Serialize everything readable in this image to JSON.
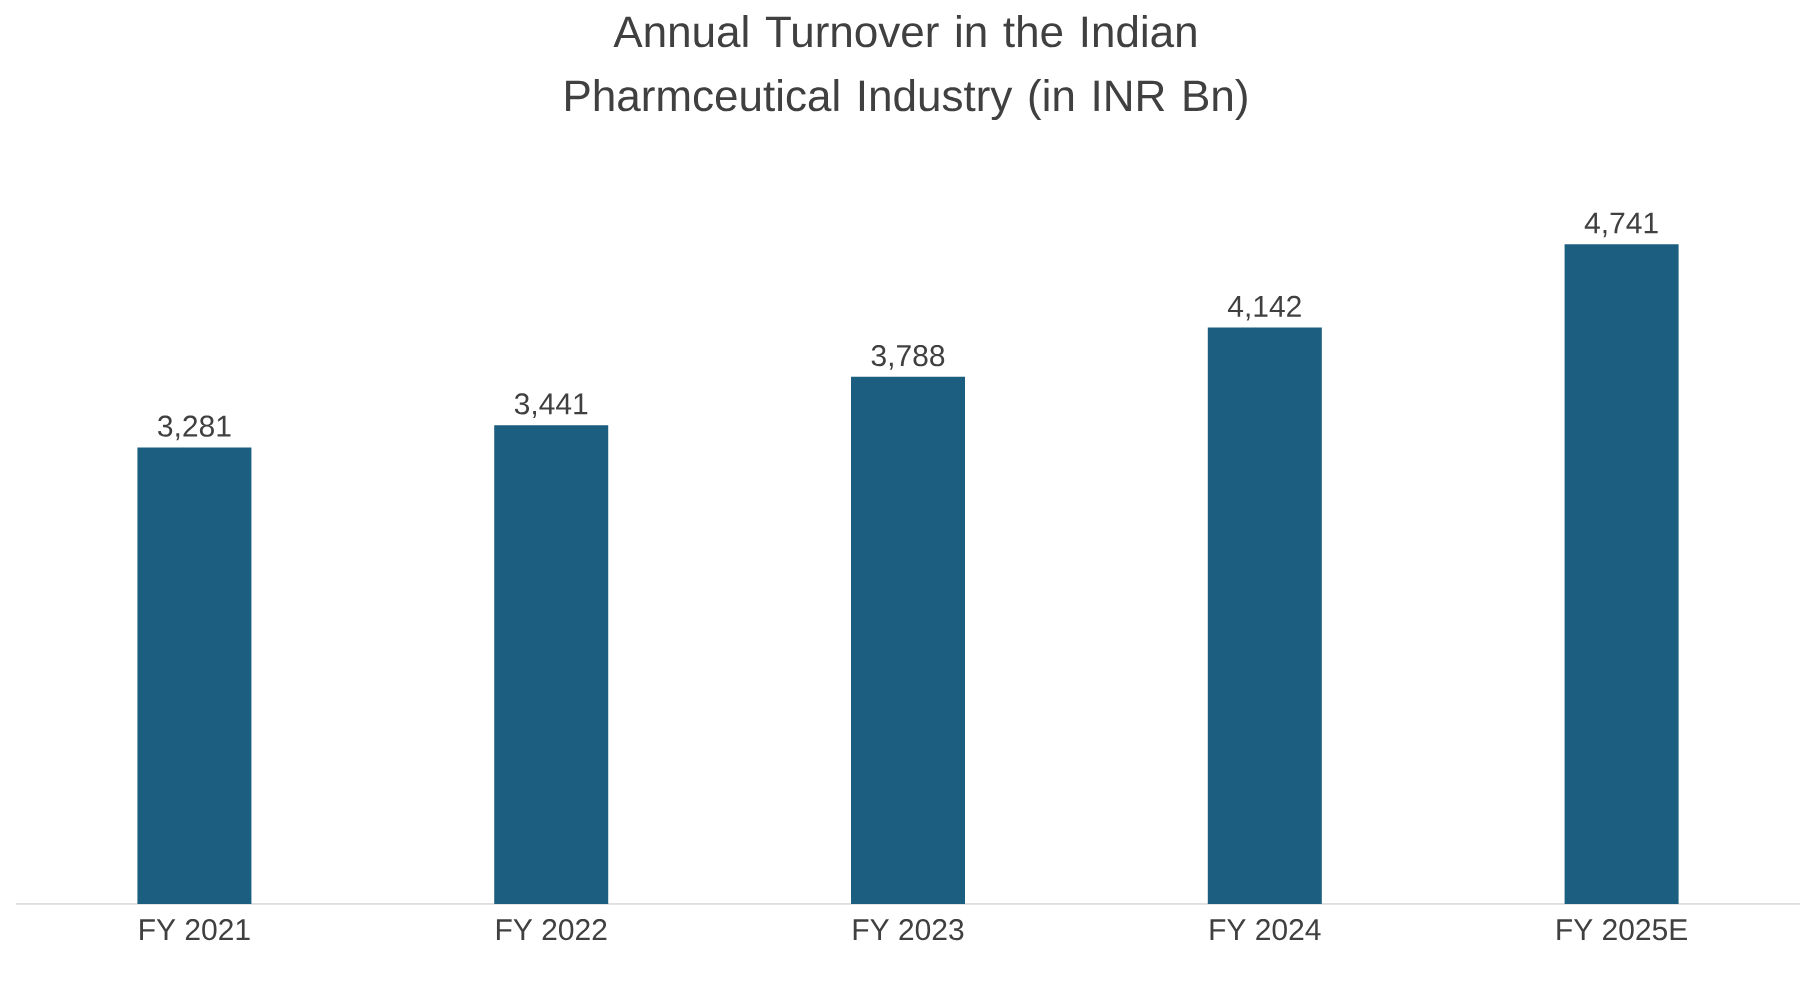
{
  "chart_data": {
    "type": "bar",
    "title": "Annual Turnover in the Indian Pharmceutical Industry (in INR Bn)",
    "categories": [
      "FY 2021",
      "FY 2022",
      "FY 2023",
      "FY 2024",
      "FY 2025E"
    ],
    "values": [
      3281,
      3441,
      3788,
      4142,
      4741
    ],
    "value_labels": [
      "3,281",
      "3,441",
      "3,788",
      "4,142",
      "4,741"
    ],
    "color": "#1b5e7f"
  }
}
